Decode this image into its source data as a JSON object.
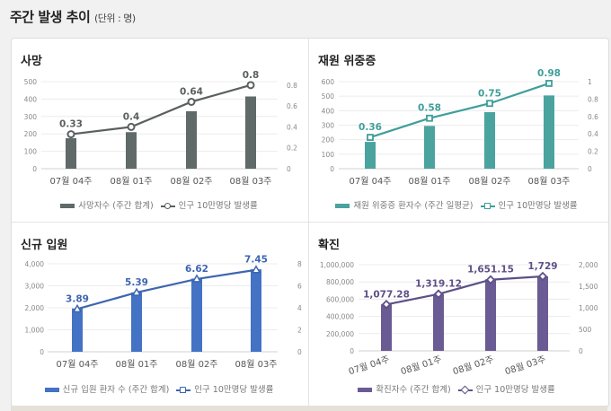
{
  "header": {
    "title": "주간 발생 추이",
    "unit": "(단위 : 명)"
  },
  "chart_data": [
    {
      "type": "bar+line",
      "title": "사망",
      "categories": [
        "07월 04주",
        "08월 01주",
        "08월 02주",
        "08월 03주"
      ],
      "series": [
        {
          "name": "사망자수 (주간 합계)",
          "type": "bar",
          "axis": "left",
          "values": [
            175,
            210,
            330,
            415
          ],
          "color": "#5f6a69"
        },
        {
          "name": "인구 10만명당 발생률",
          "type": "line",
          "axis": "right",
          "marker": "circle",
          "values": [
            0.33,
            0.4,
            0.64,
            0.8
          ],
          "labels": [
            "0.33",
            "0.4",
            "0.64",
            "0.8"
          ],
          "color": "#5a5f5f"
        }
      ],
      "left_axis": {
        "ticks": [
          "0",
          "100",
          "200",
          "300",
          "400",
          "500"
        ],
        "range": [
          0,
          500
        ]
      },
      "right_axis": {
        "ticks": [
          "0",
          "0.2",
          "0.4",
          "0.6",
          "0.8"
        ],
        "range": [
          0,
          0.833
        ]
      },
      "grid": true,
      "legend": "bottom"
    },
    {
      "type": "bar+line",
      "title": "재원 위중증",
      "categories": [
        "07월 04주",
        "08월 01주",
        "08월 02주",
        "08월 03주"
      ],
      "series": [
        {
          "name": "재원 위중증 환자수 (주간 일평균)",
          "type": "bar",
          "axis": "left",
          "values": [
            185,
            295,
            390,
            505
          ],
          "color": "#4aa39f"
        },
        {
          "name": "인구 10만명당 발생률",
          "type": "line",
          "axis": "right",
          "marker": "square",
          "values": [
            0.36,
            0.58,
            0.75,
            0.98
          ],
          "labels": [
            "0.36",
            "0.58",
            "0.75",
            "0.98"
          ],
          "color": "#3f9e99"
        }
      ],
      "left_axis": {
        "ticks": [
          "0",
          "100",
          "200",
          "300",
          "400",
          "500",
          "600"
        ],
        "range": [
          0,
          600
        ]
      },
      "right_axis": {
        "ticks": [
          "0",
          "0.2",
          "0.4",
          "0.6",
          "0.8",
          "1"
        ],
        "range": [
          0,
          1
        ]
      },
      "grid": true,
      "legend": "bottom"
    },
    {
      "type": "bar+line",
      "title": "신규 입원",
      "categories": [
        "07월 04주",
        "08월 01주",
        "08월 02주",
        "08월 03주"
      ],
      "series": [
        {
          "name": "신규 입원 환자 수 (주간 합계)",
          "type": "bar",
          "axis": "left",
          "values": [
            1970,
            2700,
            3330,
            3750
          ],
          "color": "#4472c4"
        },
        {
          "name": "인구 10만명당 발생률",
          "type": "line",
          "axis": "right",
          "marker": "triangle",
          "values": [
            3.89,
            5.39,
            6.62,
            7.45
          ],
          "labels": [
            "3.89",
            "5.39",
            "6.62",
            "7.45"
          ],
          "color": "#3d66b0"
        }
      ],
      "left_axis": {
        "ticks": [
          "0",
          "1,000",
          "2,000",
          "3,000",
          "4,000"
        ],
        "range": [
          0,
          4000
        ]
      },
      "right_axis": {
        "ticks": [
          "0",
          "2",
          "4",
          "6",
          "8"
        ],
        "range": [
          0,
          8
        ]
      },
      "grid": true,
      "legend": "bottom"
    },
    {
      "type": "bar+line",
      "title": "확진",
      "categories": [
        "07월 04주",
        "08월 01주",
        "08월 02주",
        "08월 03주"
      ],
      "series": [
        {
          "name": "확진자수 (주간 합계)",
          "type": "bar",
          "axis": "left",
          "values": [
            540000,
            660000,
            830000,
            865000
          ],
          "color": "#6b5b94"
        },
        {
          "name": "인구 10만명당 발생률",
          "type": "line",
          "axis": "right",
          "marker": "diamond",
          "values": [
            1077.28,
            1319.12,
            1651.15,
            1729
          ],
          "labels": [
            "1,077.28",
            "1,319.12",
            "1,651.15",
            "1,729"
          ],
          "color": "#5d4f88"
        }
      ],
      "left_axis": {
        "ticks": [
          "0",
          "200,000",
          "400,000",
          "600,000",
          "800,000",
          "1,000,000"
        ],
        "range": [
          0,
          1000000
        ]
      },
      "right_axis": {
        "ticks": [
          "0",
          "500",
          "1,000",
          "1,500",
          "2,000"
        ],
        "range": [
          0,
          2000
        ]
      },
      "grid": true,
      "legend": "bottom",
      "rotated_x_labels": true
    }
  ]
}
